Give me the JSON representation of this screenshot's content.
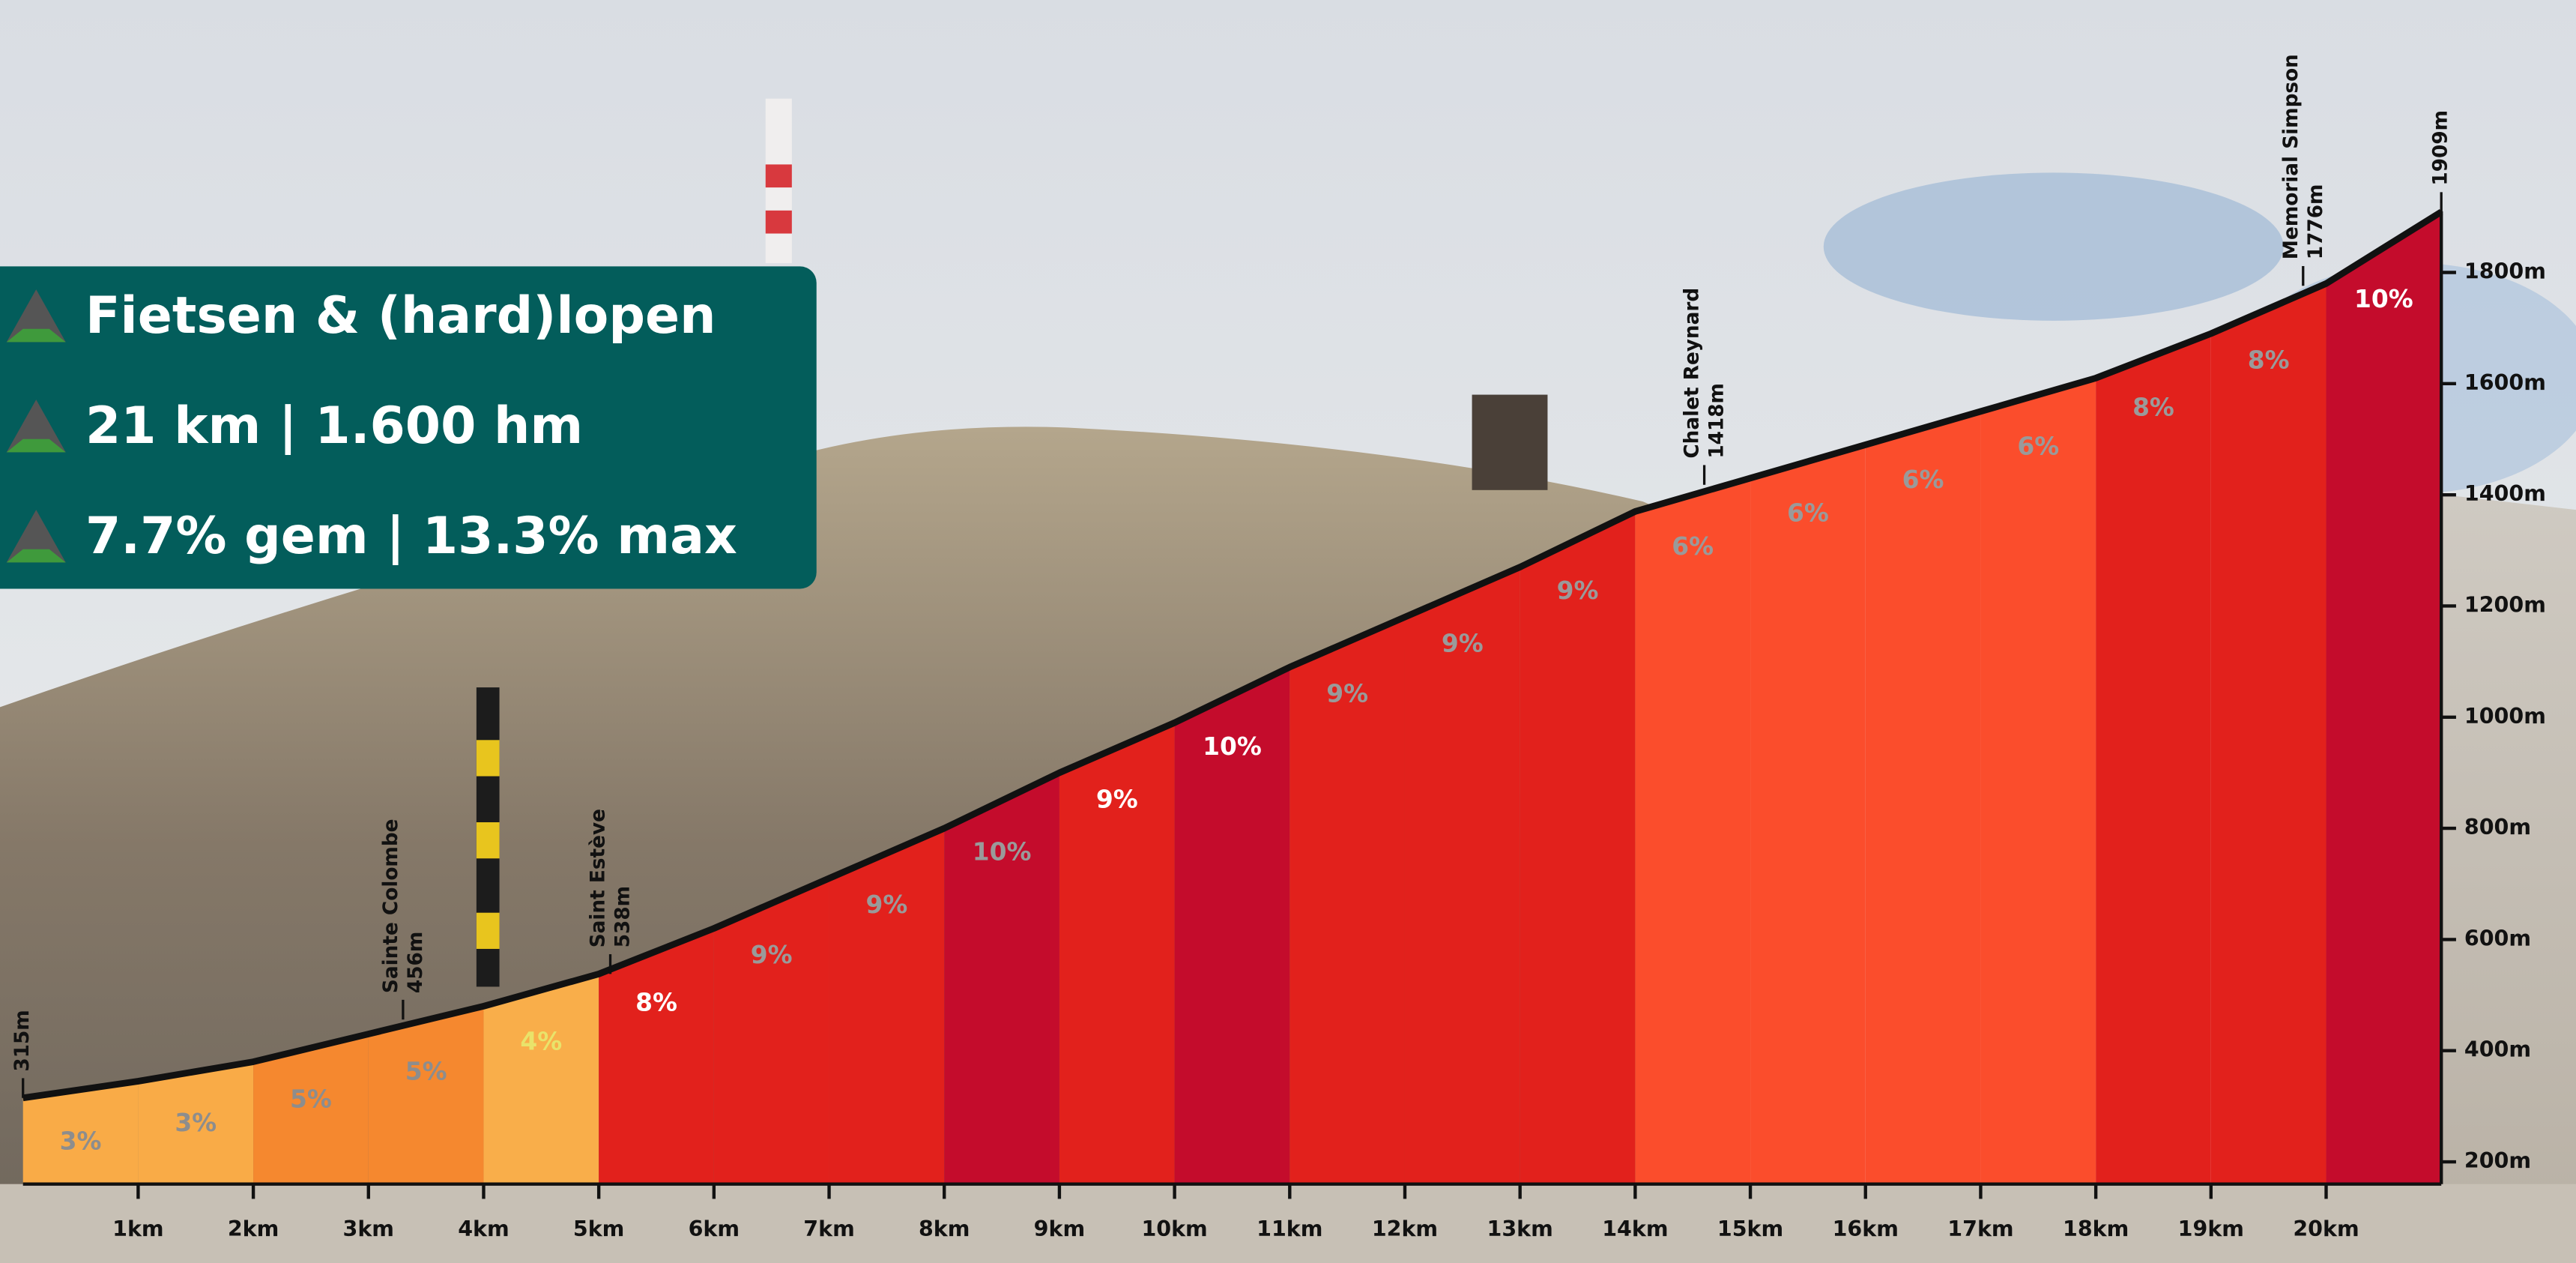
{
  "chart_data": {
    "type": "elevation-profile",
    "info": [
      "Fietsen & (hard)lopen",
      "21 km | 1.600 hm",
      "7.7% gem | 13.3% max"
    ],
    "x": [
      0,
      1,
      2,
      3,
      4,
      5,
      6,
      7,
      8,
      9,
      10,
      11,
      12,
      13,
      14,
      15,
      16,
      17,
      18,
      19,
      20,
      21
    ],
    "values": [
      315,
      345,
      380,
      430,
      480,
      538,
      620,
      710,
      800,
      900,
      990,
      1090,
      1180,
      1270,
      1370,
      1430,
      1490,
      1550,
      1610,
      1690,
      1780,
      1909
    ],
    "line_color": "#111111",
    "bands": {
      "values": [
        3,
        3,
        5,
        5,
        4,
        8,
        9,
        9,
        10,
        9,
        10,
        9,
        9,
        9,
        6,
        6,
        6,
        6,
        8,
        8,
        10
      ],
      "value_labels": [
        "3%",
        "3%",
        "5%",
        "5%",
        "4%",
        "8%",
        "9%",
        "9%",
        "10%",
        "9%",
        "10%",
        "9%",
        "9%",
        "9%",
        "6%",
        "6%",
        "6%",
        "6%",
        "8%",
        "8%",
        "10%"
      ],
      "colors": [
        "#f9ab47",
        "#f9ab47",
        "#f5882f",
        "#f5882f",
        "#f9ae4a",
        "#e2211c",
        "#e2211c",
        "#e2211c",
        "#c40c2c",
        "#e2211c",
        "#c40c2c",
        "#e2211c",
        "#e2211c",
        "#e2211c",
        "#fb4d2c",
        "#fb4d2c",
        "#fb4d2c",
        "#fb4d2c",
        "#e2211c",
        "#e2211c",
        "#c40c2c"
      ],
      "label_colors": [
        "#8d8d8d",
        "#8d8d8d",
        "#8d8d8d",
        "#8d8d8d",
        "#e9e36a",
        "#ffffff",
        "#9a9a9a",
        "#9a9a9a",
        "#9a9a9a",
        "#ffffff",
        "#ffffff",
        "#9a9a9a",
        "#9a9a9a",
        "#9a9a9a",
        "#9a9a9a",
        "#9a9a9a",
        "#9a9a9a",
        "#9a9a9a",
        "#9a9a9a",
        "#9a9a9a",
        "#ffffff"
      ]
    },
    "annotations": [
      {
        "x": 0,
        "elevation": 315,
        "label": "315m"
      },
      {
        "x": 3.3,
        "name": "Sainte Colombe",
        "elevation": 456,
        "label": "456m"
      },
      {
        "x": 5.1,
        "name": "Saint Estève",
        "elevation": 538,
        "label": "538m"
      },
      {
        "x": 14.6,
        "name": "Chalet Reynard",
        "elevation": 1418,
        "label": "1418m"
      },
      {
        "x": 19.8,
        "name": "Memorial Simpson",
        "elevation": 1776,
        "label": "1776m"
      },
      {
        "x": 21,
        "elevation": 1909,
        "label": "1909m"
      }
    ],
    "xlim": [
      0,
      21
    ],
    "xticks": [
      {
        "value": 1,
        "label": "1km"
      },
      {
        "value": 2,
        "label": "2km"
      },
      {
        "value": 3,
        "label": "3km"
      },
      {
        "value": 4,
        "label": "4km"
      },
      {
        "value": 5,
        "label": "5km"
      },
      {
        "value": 6,
        "label": "6km"
      },
      {
        "value": 7,
        "label": "7km"
      },
      {
        "value": 8,
        "label": "8km"
      },
      {
        "value": 9,
        "label": "9km"
      },
      {
        "value": 10,
        "label": "10km"
      },
      {
        "value": 11,
        "label": "11km"
      },
      {
        "value": 12,
        "label": "12km"
      },
      {
        "value": 13,
        "label": "13km"
      },
      {
        "value": 14,
        "label": "14km"
      },
      {
        "value": 15,
        "label": "15km"
      },
      {
        "value": 16,
        "label": "16km"
      },
      {
        "value": 17,
        "label": "17km"
      },
      {
        "value": 18,
        "label": "18km"
      },
      {
        "value": 19,
        "label": "19km"
      },
      {
        "value": 20,
        "label": "20km"
      }
    ],
    "ylim": [
      160,
      1910
    ],
    "yticks": [
      {
        "value": 200,
        "label": "200m"
      },
      {
        "value": 400,
        "label": "400m"
      },
      {
        "value": 600,
        "label": "600m"
      },
      {
        "value": 800,
        "label": "800m"
      },
      {
        "value": 1000,
        "label": "1000m"
      },
      {
        "value": 1200,
        "label": "1200m"
      },
      {
        "value": 1400,
        "label": "1400m"
      },
      {
        "value": 1600,
        "label": "1600m"
      },
      {
        "value": 1800,
        "label": "1800m"
      }
    ]
  }
}
